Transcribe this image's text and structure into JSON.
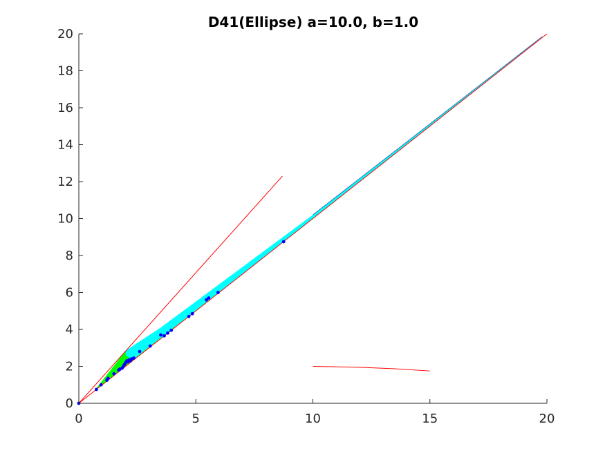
{
  "chart_data": {
    "type": "scatter",
    "title": "D41(Ellipse) a=10.0, b=1.0",
    "xlabel": "",
    "ylabel": "",
    "xlim": [
      0,
      20
    ],
    "ylim": [
      0,
      20
    ],
    "xticks": [
      0,
      5,
      10,
      15,
      20
    ],
    "yticks": [
      0,
      2,
      4,
      6,
      8,
      10,
      12,
      14,
      16,
      18,
      20
    ],
    "grid": false,
    "legend": "none",
    "colors": {
      "red_line": "#ff0000",
      "green_region": "#00ff00",
      "cyan_region": "#00ffff",
      "blue_points": "#0000ff",
      "axis": "#262626"
    },
    "regions": [
      {
        "color": "green",
        "polygon": [
          [
            0.65,
            0.65
          ],
          [
            2.0,
            2.85
          ],
          [
            2.3,
            2.35
          ],
          [
            10.0,
            10.0
          ],
          [
            2.0,
            2.0
          ],
          [
            1.0,
            1.0
          ]
        ]
      },
      {
        "color": "cyan",
        "polygon": [
          [
            2.0,
            2.85
          ],
          [
            3.5,
            4.1
          ],
          [
            10.0,
            10.2
          ],
          [
            19.8,
            19.85
          ],
          [
            19.5,
            19.5
          ],
          [
            10.0,
            10.0
          ],
          [
            2.3,
            2.35
          ],
          [
            2.0,
            2.6
          ]
        ]
      }
    ],
    "lines": [
      {
        "color": "red",
        "x": [
          0,
          20
        ],
        "y": [
          0,
          20
        ]
      },
      {
        "color": "red",
        "x": [
          0,
          8.7
        ],
        "y": [
          0,
          12.3
        ]
      },
      {
        "color": "red",
        "x": [
          10,
          12,
          13.5,
          15
        ],
        "y": [
          2.0,
          1.95,
          1.87,
          1.75
        ]
      }
    ],
    "points": {
      "color": "blue",
      "x": [
        0,
        0.75,
        0.95,
        1.2,
        1.25,
        1.5,
        1.7,
        1.75,
        1.85,
        1.9,
        1.95,
        2.0,
        2.05,
        2.1,
        2.15,
        2.2,
        2.25,
        2.35,
        2.6,
        3.05,
        3.5,
        3.65,
        3.8,
        3.95,
        4.7,
        4.85,
        5.45,
        5.55,
        5.95,
        8.75
      ],
      "y": [
        0,
        0.75,
        1.0,
        1.25,
        1.35,
        1.6,
        1.8,
        1.85,
        1.9,
        2.0,
        2.1,
        2.2,
        2.3,
        2.25,
        2.35,
        2.3,
        2.4,
        2.45,
        2.8,
        3.1,
        3.7,
        3.65,
        3.8,
        3.95,
        4.7,
        4.85,
        5.6,
        5.7,
        6.0,
        8.75
      ]
    }
  }
}
